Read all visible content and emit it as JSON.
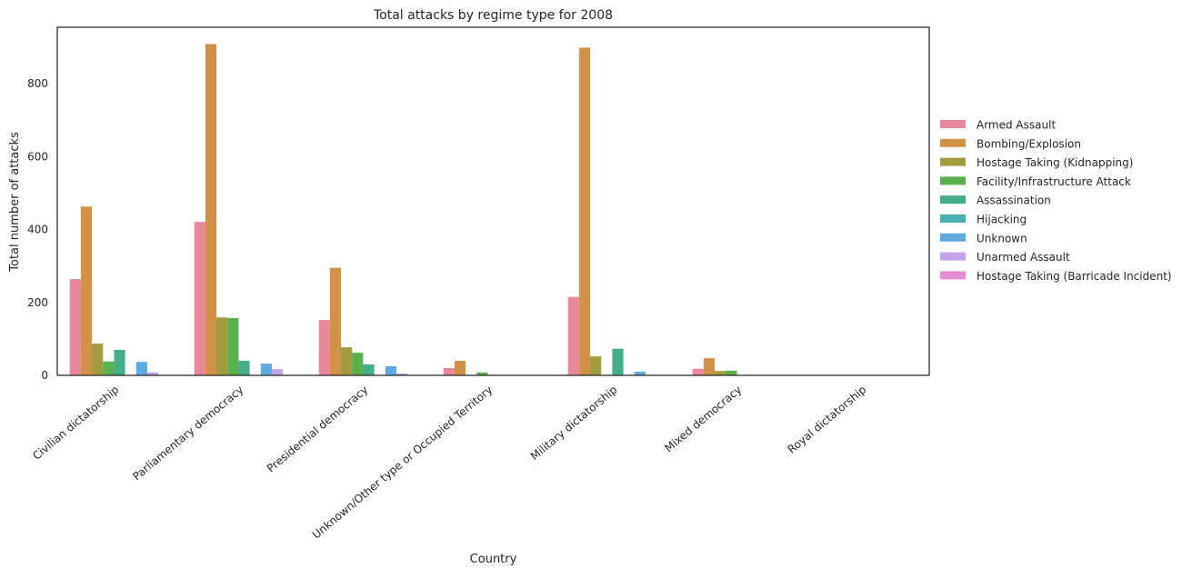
{
  "chart_data": {
    "type": "bar",
    "title": "Total attacks by regime type for 2008",
    "xlabel": "Country",
    "ylabel": "Total number of attacks",
    "ylim": [
      0,
      955
    ],
    "yticks": [
      0,
      200,
      400,
      600,
      800
    ],
    "grid": false,
    "legend_position": "right",
    "categories": [
      "Civilian dictatorship",
      "Parliamentary democracy",
      "Presidential democracy",
      "Unknown/Other type or Occupied Territory",
      "Military dictatorship",
      "Mixed democracy",
      "Royal dictatorship"
    ],
    "series": [
      {
        "name": "Armed Assault",
        "color": "#e8889a",
        "values": [
          264,
          421,
          152,
          20,
          215,
          18,
          0
        ]
      },
      {
        "name": "Bombing/Explosion",
        "color": "#d19247",
        "values": [
          463,
          909,
          295,
          40,
          899,
          47,
          0
        ]
      },
      {
        "name": "Hostage Taking (Kidnapping)",
        "color": "#a39c3e",
        "values": [
          87,
          159,
          77,
          0,
          52,
          12,
          0
        ]
      },
      {
        "name": "Facility/Infrastructure Attack",
        "color": "#5bb04e",
        "values": [
          38,
          157,
          62,
          8,
          0,
          13,
          0
        ]
      },
      {
        "name": "Assassination",
        "color": "#44ae8c",
        "values": [
          70,
          40,
          30,
          0,
          73,
          0,
          0
        ]
      },
      {
        "name": "Hijacking",
        "color": "#49b0b3",
        "values": [
          0,
          0,
          0,
          0,
          0,
          0,
          0
        ]
      },
      {
        "name": "Unknown",
        "color": "#5ea9e0",
        "values": [
          37,
          32,
          25,
          0,
          10,
          0,
          0
        ]
      },
      {
        "name": "Unarmed Assault",
        "color": "#c4a3e8",
        "values": [
          8,
          17,
          5,
          0,
          0,
          0,
          0
        ]
      },
      {
        "name": "Hostage Taking (Barricade Incident)",
        "color": "#e88bd6",
        "values": [
          0,
          0,
          0,
          0,
          0,
          0,
          0
        ]
      }
    ]
  }
}
